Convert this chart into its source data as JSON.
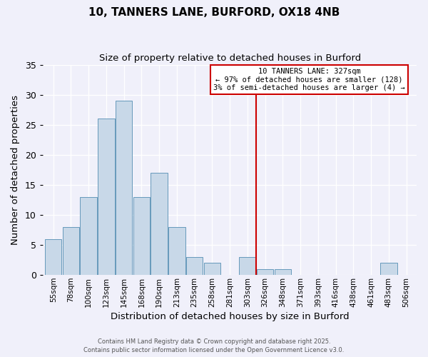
{
  "title1": "10, TANNERS LANE, BURFORD, OX18 4NB",
  "title2": "Size of property relative to detached houses in Burford",
  "xlabel": "Distribution of detached houses by size in Burford",
  "ylabel": "Number of detached properties",
  "bar_labels": [
    "55sqm",
    "78sqm",
    "100sqm",
    "123sqm",
    "145sqm",
    "168sqm",
    "190sqm",
    "213sqm",
    "235sqm",
    "258sqm",
    "281sqm",
    "303sqm",
    "326sqm",
    "348sqm",
    "371sqm",
    "393sqm",
    "416sqm",
    "438sqm",
    "461sqm",
    "483sqm",
    "506sqm"
  ],
  "bar_values": [
    6,
    8,
    13,
    26,
    29,
    13,
    17,
    8,
    3,
    2,
    0,
    3,
    1,
    1,
    0,
    0,
    0,
    0,
    0,
    2,
    0
  ],
  "bar_color": "#c8d8e8",
  "bar_edge_color": "#6699bb",
  "vline_index": 12,
  "vline_color": "#cc0000",
  "annotation_title": "10 TANNERS LANE: 327sqm",
  "annotation_line1": "← 97% of detached houses are smaller (128)",
  "annotation_line2": "3% of semi-detached houses are larger (4) →",
  "annotation_box_color": "#cc0000",
  "ylim": [
    0,
    35
  ],
  "yticks": [
    0,
    5,
    10,
    15,
    20,
    25,
    30,
    35
  ],
  "footer1": "Contains HM Land Registry data © Crown copyright and database right 2025.",
  "footer2": "Contains public sector information licensed under the Open Government Licence v3.0.",
  "bg_color": "#f0f0fa",
  "grid_color": "#ffffff"
}
